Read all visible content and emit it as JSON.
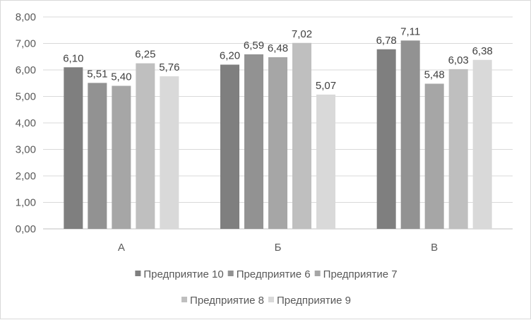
{
  "chart_data": {
    "type": "bar",
    "categories": [
      "А",
      "Б",
      "В"
    ],
    "series": [
      {
        "name": "Предприятие 10",
        "values": [
          6.1,
          6.2,
          6.78
        ],
        "color": "#7f7f7f"
      },
      {
        "name": "Предприятие 6",
        "values": [
          5.51,
          6.59,
          7.11
        ],
        "color": "#929292"
      },
      {
        "name": "Предприятие 7",
        "values": [
          5.4,
          6.48,
          5.48
        ],
        "color": "#a6a6a6"
      },
      {
        "name": "Предприятие 8",
        "values": [
          6.25,
          7.02,
          6.03
        ],
        "color": "#bfbfbf"
      },
      {
        "name": "Предприятие 9",
        "values": [
          5.76,
          5.07,
          6.38
        ],
        "color": "#d9d9d9"
      }
    ],
    "data_labels": [
      [
        "6,10",
        "6,20",
        "6,78"
      ],
      [
        "5,51",
        "6,59",
        "7,11"
      ],
      [
        "5,40",
        "6,48",
        "5,48"
      ],
      [
        "6,25",
        "7,02",
        "6,03"
      ],
      [
        "5,76",
        "5,07",
        "6,38"
      ]
    ],
    "y_ticks": [
      "0,00",
      "1,00",
      "2,00",
      "3,00",
      "4,00",
      "5,00",
      "6,00",
      "7,00",
      "8,00"
    ],
    "ylim": [
      0,
      8
    ],
    "grid": true,
    "legend": "bottom",
    "title": "",
    "xlabel": "",
    "ylabel": ""
  }
}
